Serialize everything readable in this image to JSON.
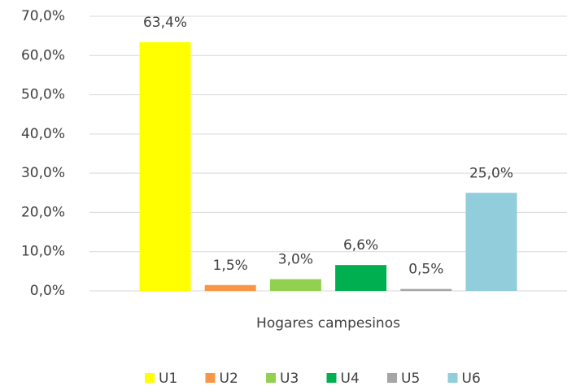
{
  "chart_data": {
    "type": "bar",
    "categories": [
      "Hogares campesinos"
    ],
    "series": [
      {
        "name": "U1",
        "color": "#ffff00",
        "values": [
          63.4
        ],
        "value_labels": [
          "63,4%"
        ]
      },
      {
        "name": "U2",
        "color": "#f79646",
        "values": [
          1.5
        ],
        "value_labels": [
          "1,5%"
        ]
      },
      {
        "name": "U3",
        "color": "#92d050",
        "values": [
          3.0
        ],
        "value_labels": [
          "3,0%"
        ]
      },
      {
        "name": "U4",
        "color": "#00b050",
        "values": [
          6.6
        ],
        "value_labels": [
          "6,6%"
        ]
      },
      {
        "name": "U5",
        "color": "#a5a5a5",
        "values": [
          0.5
        ],
        "value_labels": [
          "0,5%"
        ]
      },
      {
        "name": "U6",
        "color": "#92cddc",
        "values": [
          25.0
        ],
        "value_labels": [
          "25,0%"
        ]
      }
    ],
    "ylim": [
      0,
      70
    ],
    "yticks": [
      {
        "value": 0,
        "label": "0,0%"
      },
      {
        "value": 10,
        "label": "10,0%"
      },
      {
        "value": 20,
        "label": "20,0%"
      },
      {
        "value": 30,
        "label": "30,0%"
      },
      {
        "value": 40,
        "label": "40,0%"
      },
      {
        "value": 50,
        "label": "50,0%"
      },
      {
        "value": 60,
        "label": "60,0%"
      },
      {
        "value": 70,
        "label": "70,0%"
      }
    ],
    "grid": true,
    "legend": "bottom"
  }
}
